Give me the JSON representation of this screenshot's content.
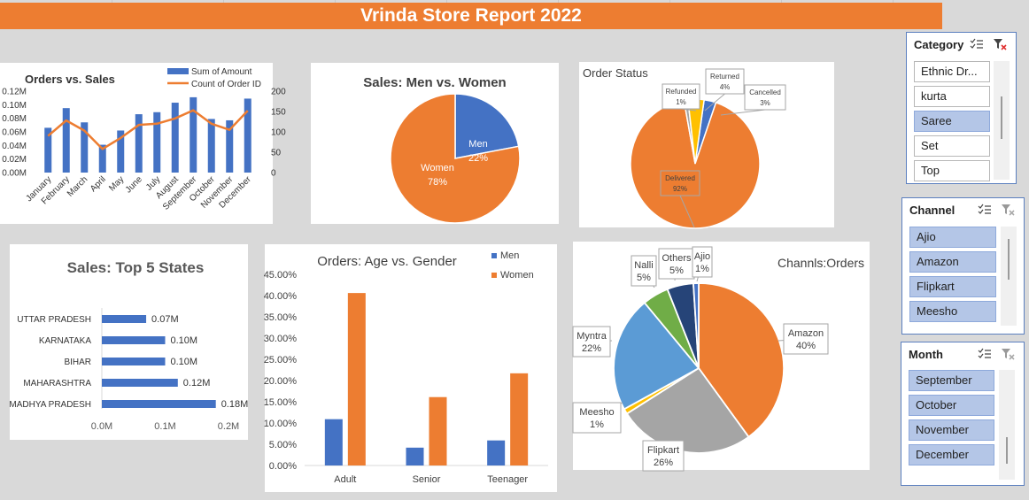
{
  "header": {
    "title": "Vrinda Store Report 2022"
  },
  "colors": {
    "blue": "#4472c4",
    "orange": "#ed7d31",
    "gray": "#a5a5a5",
    "yellow": "#ffc000",
    "light_blue": "#5b9bd5",
    "green": "#70ad47",
    "navy": "#264478"
  },
  "orders_vs_sales": {
    "chart_data": {
      "type": "bar",
      "title": "Orders vs. Sales",
      "categories": [
        "January",
        "February",
        "March",
        "April",
        "May",
        "June",
        "July",
        "August",
        "September",
        "October",
        "November",
        "December"
      ],
      "series": [
        {
          "name": "Sum of Amount",
          "type": "bar",
          "axis": "left",
          "values": [
            0.066,
            0.095,
            0.074,
            0.041,
            0.062,
            0.086,
            0.089,
            0.103,
            0.111,
            0.079,
            0.077,
            0.109
          ]
        },
        {
          "name": "Count of Order ID",
          "type": "line",
          "axis": "right",
          "values": [
            90,
            128,
            103,
            58,
            85,
            117,
            120,
            133,
            153,
            120,
            105,
            152
          ]
        }
      ],
      "left_axis_ticks": [
        "0.00M",
        "0.02M",
        "0.04M",
        "0.06M",
        "0.08M",
        "0.10M",
        "0.12M"
      ],
      "left_ylim": [
        0,
        0.12
      ],
      "right_axis_ticks": [
        "0",
        "50",
        "100",
        "150",
        "200"
      ],
      "right_ylim": [
        0,
        200
      ],
      "legend": "top-right"
    }
  },
  "men_vs_women": {
    "chart_data": {
      "type": "pie",
      "title": "Sales: Men vs. Women",
      "labels": [
        "Men",
        "Women"
      ],
      "values": [
        22,
        78
      ],
      "value_labels": [
        "22%",
        "78%"
      ]
    }
  },
  "order_status": {
    "chart_data": {
      "type": "pie",
      "title": "Order Status",
      "labels": [
        "Delivered",
        "Refunded",
        "Returned",
        "Cancelled"
      ],
      "values": [
        92,
        1,
        4,
        3
      ],
      "value_labels": [
        "92%",
        "1%",
        "4%",
        "3%"
      ]
    }
  },
  "top_states": {
    "chart_data": {
      "type": "bar",
      "orientation": "horizontal",
      "title": "Sales: Top 5 States",
      "categories": [
        "UTTAR PRADESH",
        "KARNATAKA",
        "BIHAR",
        "MAHARASHTRA",
        "MADHYA PRADESH"
      ],
      "values": [
        0.07,
        0.1,
        0.1,
        0.12,
        0.18
      ],
      "value_labels": [
        "0.07M",
        "0.10M",
        "0.10M",
        "0.12M",
        "0.18M"
      ],
      "x_ticks": [
        "0.0M",
        "0.1M",
        "0.2M"
      ],
      "xlim": [
        0,
        0.2
      ]
    }
  },
  "age_gender": {
    "chart_data": {
      "type": "bar",
      "title": "Orders: Age vs. Gender",
      "categories": [
        "Adult",
        "Senior",
        "Teenager"
      ],
      "series": [
        {
          "name": "Men",
          "values": [
            10.9,
            4.2,
            5.9
          ]
        },
        {
          "name": "Women",
          "values": [
            40.6,
            16.1,
            21.7
          ]
        }
      ],
      "y_ticks": [
        "0.00%",
        "5.00%",
        "10.00%",
        "15.00%",
        "20.00%",
        "25.00%",
        "30.00%",
        "35.00%",
        "40.00%",
        "45.00%"
      ],
      "ylim": [
        0,
        45
      ],
      "legend": "top-right"
    }
  },
  "channels": {
    "chart_data": {
      "type": "pie",
      "title": "Channls:Orders",
      "labels": [
        "Amazon",
        "Flipkart",
        "Meesho",
        "Myntra",
        "Nalli",
        "Others",
        "Ajio"
      ],
      "values": [
        40,
        26,
        1,
        22,
        5,
        5,
        1
      ],
      "value_labels": [
        "40%",
        "26%",
        "1%",
        "22%",
        "5%",
        "5%",
        "1%"
      ]
    }
  },
  "slicers": {
    "category": {
      "title": "Category",
      "items": [
        "Ethnic Dr...",
        "kurta",
        "Saree",
        "Set",
        "Top"
      ],
      "selected": [
        "Saree"
      ]
    },
    "channel": {
      "title": "Channel",
      "items": [
        "Ajio",
        "Amazon",
        "Flipkart",
        "Meesho"
      ],
      "selected": [
        "Ajio",
        "Amazon",
        "Flipkart",
        "Meesho"
      ]
    },
    "month": {
      "title": "Month",
      "items": [
        "September",
        "October",
        "November",
        "December"
      ],
      "selected": [
        "September",
        "October",
        "November",
        "December"
      ]
    }
  }
}
